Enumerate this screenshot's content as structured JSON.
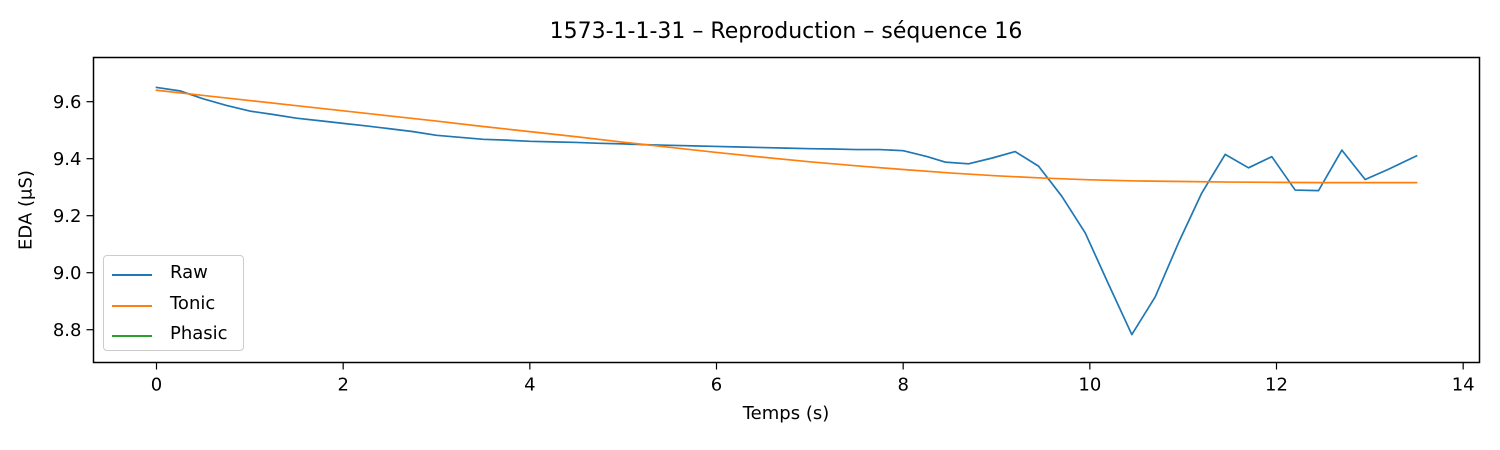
{
  "chart_data": {
    "type": "line",
    "title": "1573-1-1-31 – Reproduction – séquence 16",
    "xlabel": "Temps (s)",
    "ylabel": "EDA (µS)",
    "xlim": [
      -0.675,
      14.175
    ],
    "ylim": [
      8.685,
      9.755
    ],
    "xticks": [
      0,
      2,
      4,
      6,
      8,
      10,
      12,
      14
    ],
    "yticks": [
      8.8,
      9.0,
      9.2,
      9.4,
      9.6
    ],
    "ytick_labels": [
      "8.8",
      "9.0",
      "9.2",
      "9.4",
      "9.6"
    ],
    "legend_position": "lower-left",
    "grid": false,
    "series": [
      {
        "name": "Raw",
        "color": "#1f77b4",
        "x": [
          0,
          0.25,
          0.5,
          0.75,
          1.0,
          1.25,
          1.5,
          1.75,
          2.0,
          2.25,
          2.5,
          2.75,
          3.0,
          3.25,
          3.5,
          3.75,
          4.0,
          4.25,
          4.5,
          4.75,
          5.0,
          5.25,
          5.5,
          5.75,
          6.0,
          6.25,
          6.5,
          6.75,
          7.0,
          7.25,
          7.5,
          7.75,
          8.0,
          8.25,
          8.45,
          8.7,
          8.95,
          9.2,
          9.45,
          9.7,
          9.95,
          10.2,
          10.45,
          10.7,
          10.95,
          11.2,
          11.45,
          11.7,
          11.95,
          12.2,
          12.45,
          12.7,
          12.95,
          13.2,
          13.5
        ],
        "y": [
          9.65,
          9.638,
          9.61,
          9.587,
          9.567,
          9.555,
          9.542,
          9.533,
          9.524,
          9.515,
          9.505,
          9.495,
          9.482,
          9.475,
          9.468,
          9.465,
          9.461,
          9.459,
          9.457,
          9.454,
          9.452,
          9.449,
          9.447,
          9.445,
          9.443,
          9.441,
          9.439,
          9.437,
          9.435,
          9.434,
          9.432,
          9.432,
          9.428,
          9.408,
          9.388,
          9.382,
          9.402,
          9.425,
          9.374,
          9.268,
          9.14,
          8.96,
          8.783,
          8.915,
          9.105,
          9.28,
          9.415,
          9.368,
          9.407,
          9.29,
          9.288,
          9.43,
          9.327,
          9.363,
          9.41
        ]
      },
      {
        "name": "Tonic",
        "color": "#ff7f0e",
        "x": [
          0,
          0.5,
          1.0,
          1.5,
          2.0,
          2.5,
          3.0,
          3.5,
          4.0,
          4.5,
          5.0,
          5.5,
          6.0,
          6.5,
          7.0,
          7.5,
          8.0,
          8.5,
          9.0,
          9.5,
          10.0,
          10.5,
          11.0,
          11.5,
          12.0,
          12.5,
          13.0,
          13.5
        ],
        "y": [
          9.64,
          9.622,
          9.604,
          9.586,
          9.568,
          9.55,
          9.532,
          9.513,
          9.495,
          9.477,
          9.458,
          9.44,
          9.422,
          9.405,
          9.389,
          9.375,
          9.362,
          9.35,
          9.34,
          9.332,
          9.326,
          9.322,
          9.32,
          9.318,
          9.317,
          9.316,
          9.316,
          9.316
        ]
      },
      {
        "name": "Phasic",
        "color": "#2ca02c",
        "x": [],
        "y": []
      }
    ]
  }
}
